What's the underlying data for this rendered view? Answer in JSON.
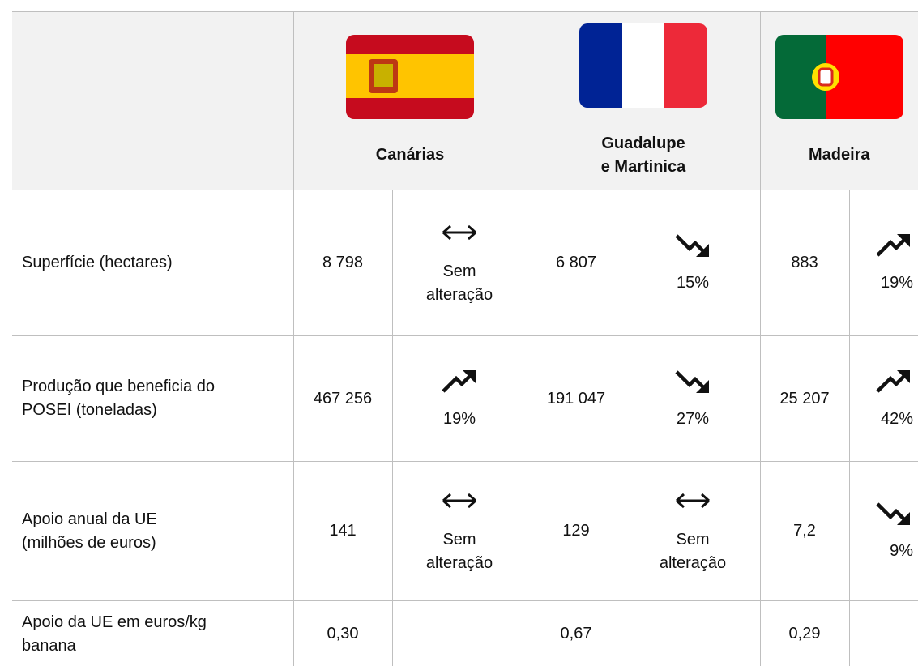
{
  "header": {
    "columns": [
      "Canárias",
      "Guadalupe\ne Martinica",
      "Madeira"
    ],
    "flags": [
      "spain",
      "france",
      "portugal"
    ]
  },
  "table": {
    "rows": [
      {
        "label": "Superfície (hectares)",
        "cells": [
          {
            "value": "8 798",
            "trend": "flat",
            "change": "Sem alteração"
          },
          {
            "value": "6 807",
            "trend": "down",
            "change": "15%"
          },
          {
            "value": "883",
            "trend": "up",
            "change": "19%"
          }
        ]
      },
      {
        "label": "Produção que beneficia do\nPOSEI (toneladas)",
        "cells": [
          {
            "value": "467 256",
            "trend": "up",
            "change": "19%"
          },
          {
            "value": "191 047",
            "trend": "down",
            "change": "27%"
          },
          {
            "value": "25 207",
            "trend": "up",
            "change": "42%"
          }
        ]
      },
      {
        "label": "Apoio anual da UE\n(milhões de euros)",
        "cells": [
          {
            "value": "141",
            "trend": "flat",
            "change": "Sem alteração"
          },
          {
            "value": "129",
            "trend": "flat",
            "change": "Sem alteração"
          },
          {
            "value": "7,2",
            "trend": "down",
            "change": "9%"
          }
        ]
      },
      {
        "label": "Apoio da UE em euros/kg\nbanana",
        "cells": [
          {
            "value": "0,30"
          },
          {
            "value": "0,67"
          },
          {
            "value": "0,29"
          }
        ]
      }
    ]
  }
}
